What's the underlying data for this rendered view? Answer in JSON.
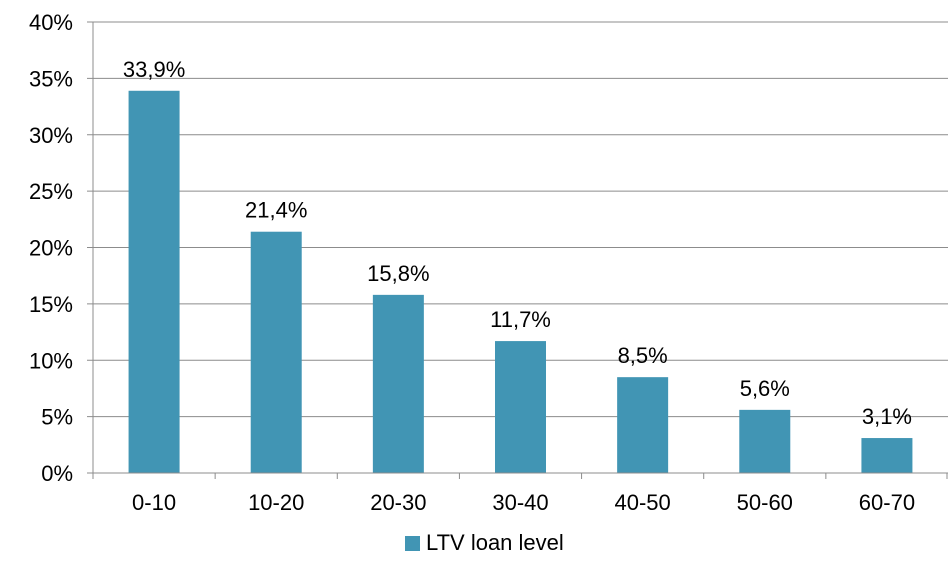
{
  "chart_data": {
    "type": "bar",
    "categories": [
      "0-10",
      "10-20",
      "20-30",
      "30-40",
      "40-50",
      "50-60",
      "60-70"
    ],
    "series": [
      {
        "name": "LTV loan level",
        "values": [
          33.9,
          21.4,
          15.8,
          11.7,
          8.5,
          5.6,
          3.1
        ],
        "color": "#4195b4"
      }
    ],
    "data_labels": [
      "33,9%",
      "21,4%",
      "15,8%",
      "11,7%",
      "8,5%",
      "5,6%",
      "3,1%"
    ],
    "y_ticks": [
      "0%",
      "5%",
      "10%",
      "15%",
      "20%",
      "25%",
      "30%",
      "35%",
      "40%"
    ],
    "ylim": [
      0,
      40
    ],
    "grid": true,
    "legend_position": "bottom",
    "title": "",
    "xlabel": "",
    "ylabel": ""
  },
  "legend": {
    "label": "LTV loan level",
    "color": "#4195b4"
  }
}
